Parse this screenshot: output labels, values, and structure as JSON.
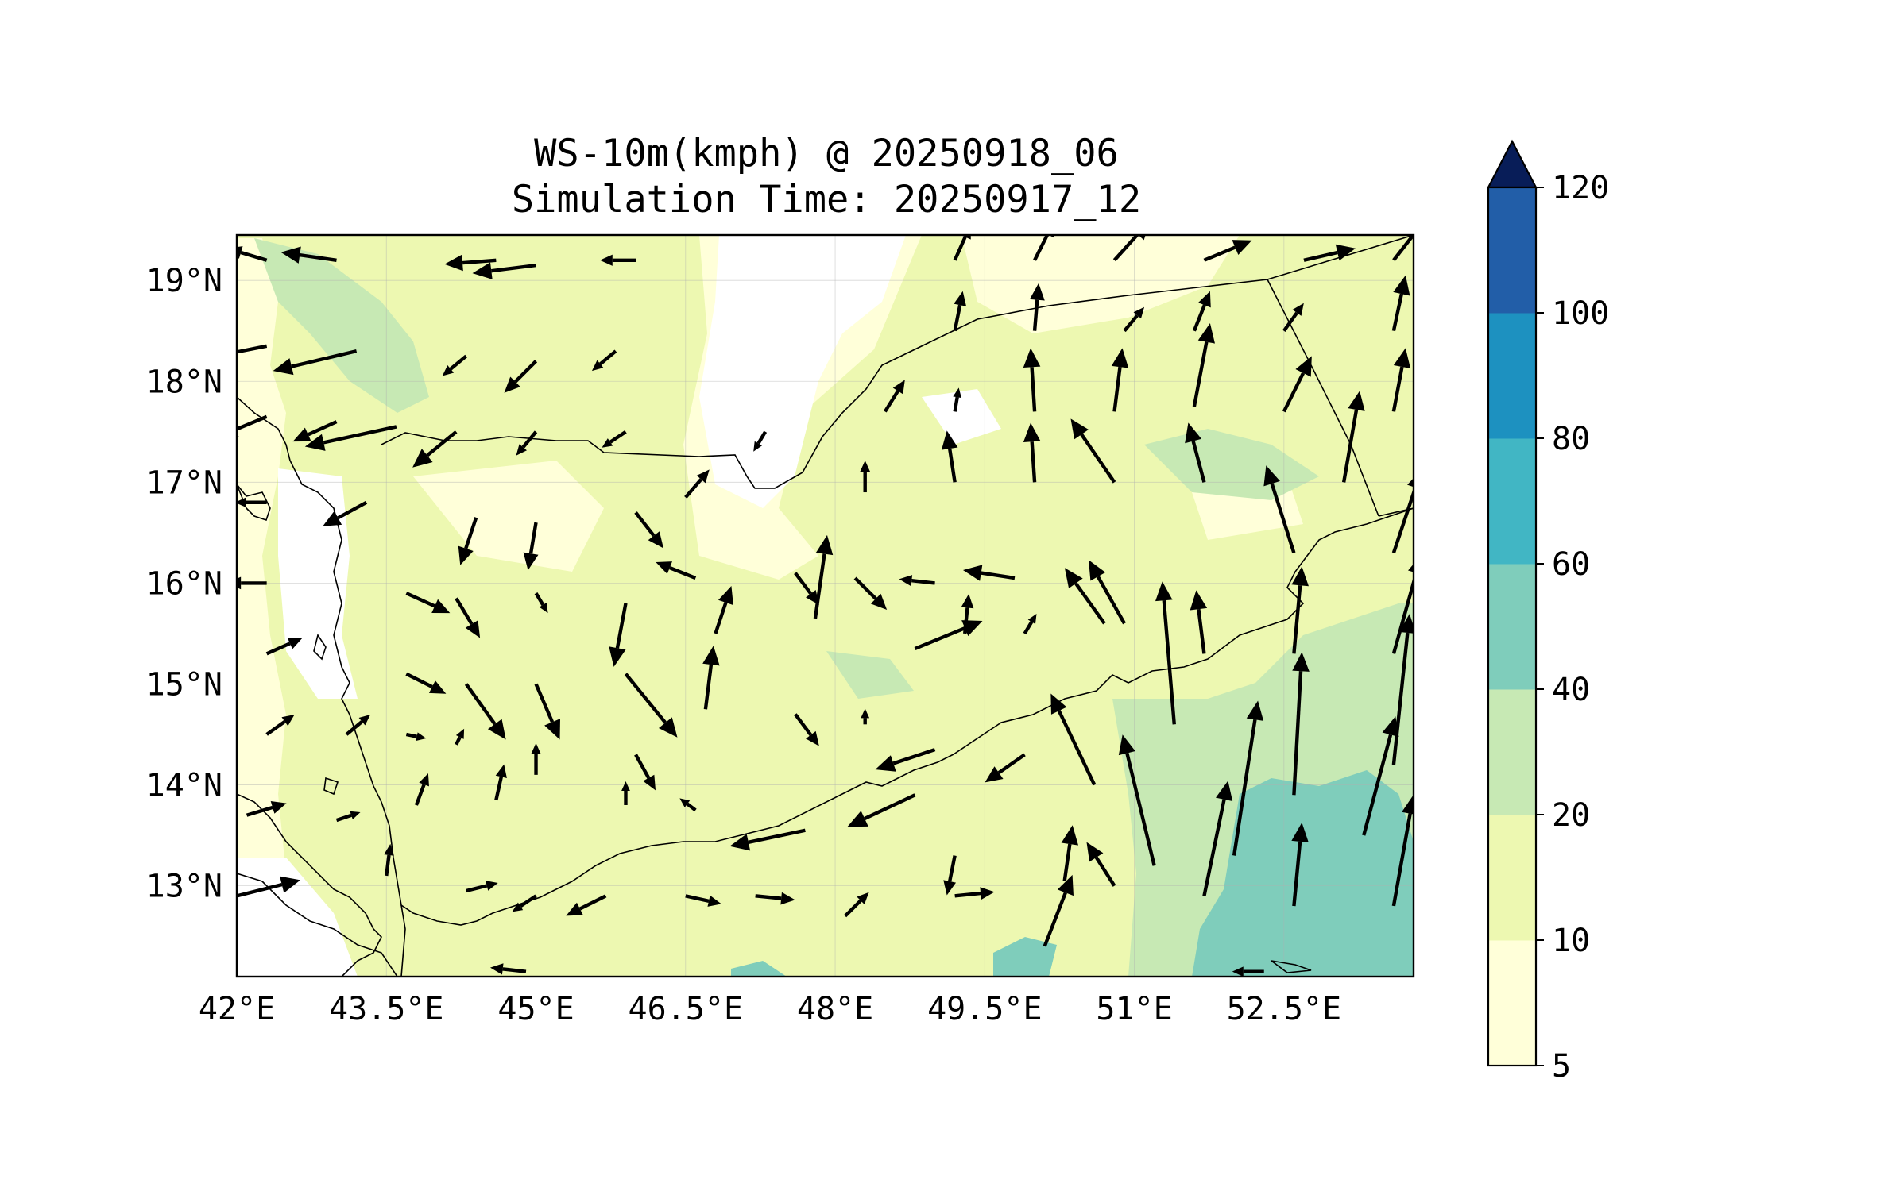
{
  "title": {
    "line1": "WS-10m(kmph) @ 20250918_06",
    "line2": "Simulation Time: 20250917_12"
  },
  "map": {
    "lon_range": [
      42.0,
      53.8
    ],
    "lat_range": [
      12.1,
      19.45
    ],
    "x_ticks": [
      {
        "value": 42.0,
        "label": "42°E"
      },
      {
        "value": 43.5,
        "label": "43.5°E"
      },
      {
        "value": 45.0,
        "label": "45°E"
      },
      {
        "value": 46.5,
        "label": "46.5°E"
      },
      {
        "value": 48.0,
        "label": "48°E"
      },
      {
        "value": 49.5,
        "label": "49.5°E"
      },
      {
        "value": 51.0,
        "label": "51°E"
      },
      {
        "value": 52.5,
        "label": "52.5°E"
      }
    ],
    "y_ticks": [
      {
        "value": 19,
        "label": "19°N"
      },
      {
        "value": 18,
        "label": "18°N"
      },
      {
        "value": 17,
        "label": "17°N"
      },
      {
        "value": 16,
        "label": "16°N"
      },
      {
        "value": 15,
        "label": "15°N"
      },
      {
        "value": 14,
        "label": "14°N"
      },
      {
        "value": 13,
        "label": "13°N"
      }
    ]
  },
  "colorbar": {
    "levels": [
      5,
      10,
      20,
      40,
      60,
      80,
      100,
      120
    ],
    "labels": [
      "5",
      "10",
      "20",
      "40",
      "60",
      "80",
      "100",
      "120"
    ],
    "colors": [
      "#ffffd9",
      "#edf8b1",
      "#c7e9b4",
      "#7fcdbb",
      "#41b6c4",
      "#1d91c0",
      "#225ea8",
      "#0c2c84"
    ],
    "extend_color": "#081d58",
    "extend": "max"
  },
  "chart_data": {
    "type": "quiver",
    "title": "WS-10m(kmph) @ 20250918_06",
    "subtitle": "Simulation Time: 20250917_12",
    "units": "kmph",
    "xlim": [
      42.0,
      53.8
    ],
    "ylim": [
      12.1,
      19.45
    ],
    "vectors": [
      {
        "lon": 42.3,
        "lat": 19.2,
        "u": -1.0,
        "v": 0.3
      },
      {
        "lon": 43.0,
        "lat": 19.2,
        "u": -1.4,
        "v": 0.2
      },
      {
        "lon": 44.6,
        "lat": 19.2,
        "u": -1.3,
        "v": -0.1
      },
      {
        "lon": 45.0,
        "lat": 19.15,
        "u": -1.6,
        "v": -0.2
      },
      {
        "lon": 46.0,
        "lat": 19.2,
        "u": -0.9,
        "v": 0.0
      },
      {
        "lon": 49.2,
        "lat": 19.2,
        "u": 0.4,
        "v": 0.9
      },
      {
        "lon": 50.0,
        "lat": 19.2,
        "u": 0.5,
        "v": 1.0
      },
      {
        "lon": 50.8,
        "lat": 19.2,
        "u": 0.9,
        "v": 1.0
      },
      {
        "lon": 51.7,
        "lat": 19.2,
        "u": 1.2,
        "v": 0.5
      },
      {
        "lon": 52.7,
        "lat": 19.2,
        "u": 1.3,
        "v": 0.3
      },
      {
        "lon": 53.6,
        "lat": 19.2,
        "u": 0.7,
        "v": 0.9
      },
      {
        "lon": 42.3,
        "lat": 18.35,
        "u": -2.0,
        "v": -0.4
      },
      {
        "lon": 43.2,
        "lat": 18.3,
        "u": -2.1,
        "v": -0.5
      },
      {
        "lon": 44.3,
        "lat": 18.25,
        "u": -0.6,
        "v": -0.5
      },
      {
        "lon": 45.0,
        "lat": 18.2,
        "u": -0.8,
        "v": -0.8
      },
      {
        "lon": 45.8,
        "lat": 18.3,
        "u": -0.6,
        "v": -0.5
      },
      {
        "lon": 49.2,
        "lat": 18.5,
        "u": 0.2,
        "v": 1.0
      },
      {
        "lon": 50.0,
        "lat": 18.5,
        "u": 0.1,
        "v": 1.2
      },
      {
        "lon": 50.9,
        "lat": 18.5,
        "u": 0.5,
        "v": 0.6
      },
      {
        "lon": 51.6,
        "lat": 18.5,
        "u": 0.4,
        "v": 1.0
      },
      {
        "lon": 52.5,
        "lat": 18.5,
        "u": 0.5,
        "v": 0.7
      },
      {
        "lon": 53.6,
        "lat": 18.5,
        "u": 0.3,
        "v": 1.4
      },
      {
        "lon": 42.3,
        "lat": 17.65,
        "u": -1.2,
        "v": -0.5
      },
      {
        "lon": 43.0,
        "lat": 17.6,
        "u": -1.1,
        "v": -0.5
      },
      {
        "lon": 43.6,
        "lat": 17.55,
        "u": -2.3,
        "v": -0.5
      },
      {
        "lon": 44.2,
        "lat": 17.5,
        "u": -1.1,
        "v": -0.9
      },
      {
        "lon": 45.0,
        "lat": 17.5,
        "u": -0.5,
        "v": -0.6
      },
      {
        "lon": 45.9,
        "lat": 17.5,
        "u": -0.6,
        "v": -0.4
      },
      {
        "lon": 47.3,
        "lat": 17.5,
        "u": -0.3,
        "v": -0.5
      },
      {
        "lon": 48.5,
        "lat": 17.7,
        "u": 0.5,
        "v": 0.8
      },
      {
        "lon": 49.2,
        "lat": 17.7,
        "u": 0.1,
        "v": 0.6
      },
      {
        "lon": 50.0,
        "lat": 17.7,
        "u": -0.1,
        "v": 1.6
      },
      {
        "lon": 50.8,
        "lat": 17.7,
        "u": 0.2,
        "v": 1.6
      },
      {
        "lon": 51.6,
        "lat": 17.75,
        "u": 0.4,
        "v": 2.1
      },
      {
        "lon": 52.5,
        "lat": 17.7,
        "u": 0.7,
        "v": 1.4
      },
      {
        "lon": 53.6,
        "lat": 17.7,
        "u": 0.3,
        "v": 1.6
      },
      {
        "lon": 42.3,
        "lat": 16.8,
        "u": -0.8,
        "v": 0.0
      },
      {
        "lon": 43.3,
        "lat": 16.8,
        "u": -1.1,
        "v": -0.6
      },
      {
        "lon": 44.4,
        "lat": 16.65,
        "u": -0.4,
        "v": -1.2
      },
      {
        "lon": 45.0,
        "lat": 16.6,
        "u": -0.2,
        "v": -1.2
      },
      {
        "lon": 46.0,
        "lat": 16.7,
        "u": 0.7,
        "v": -0.9
      },
      {
        "lon": 46.5,
        "lat": 16.85,
        "u": 0.6,
        "v": 0.7
      },
      {
        "lon": 48.3,
        "lat": 16.9,
        "u": 0.0,
        "v": 0.8
      },
      {
        "lon": 49.2,
        "lat": 17.0,
        "u": -0.2,
        "v": 1.3
      },
      {
        "lon": 50.0,
        "lat": 17.0,
        "u": -0.1,
        "v": 1.5
      },
      {
        "lon": 50.8,
        "lat": 17.0,
        "u": -1.1,
        "v": 1.6
      },
      {
        "lon": 51.7,
        "lat": 17.0,
        "u": -0.4,
        "v": 1.5
      },
      {
        "lon": 52.6,
        "lat": 16.3,
        "u": -0.7,
        "v": 2.2
      },
      {
        "lon": 53.1,
        "lat": 17.0,
        "u": 0.4,
        "v": 2.3
      },
      {
        "lon": 53.6,
        "lat": 16.3,
        "u": 0.7,
        "v": 2.1
      },
      {
        "lon": 42.3,
        "lat": 16.0,
        "u": -1.0,
        "v": 0.0
      },
      {
        "lon": 43.7,
        "lat": 15.9,
        "u": 1.1,
        "v": -0.5
      },
      {
        "lon": 44.2,
        "lat": 15.85,
        "u": 0.6,
        "v": -1.0
      },
      {
        "lon": 45.0,
        "lat": 15.9,
        "u": 0.3,
        "v": -0.5
      },
      {
        "lon": 45.9,
        "lat": 15.8,
        "u": -0.3,
        "v": -1.6
      },
      {
        "lon": 46.6,
        "lat": 16.05,
        "u": -1.0,
        "v": 0.4
      },
      {
        "lon": 47.6,
        "lat": 16.1,
        "u": 0.6,
        "v": -0.8
      },
      {
        "lon": 48.2,
        "lat": 16.05,
        "u": 0.8,
        "v": -0.8
      },
      {
        "lon": 49.0,
        "lat": 16.0,
        "u": -0.9,
        "v": 0.1
      },
      {
        "lon": 49.8,
        "lat": 16.05,
        "u": -1.3,
        "v": 0.2
      },
      {
        "lon": 50.9,
        "lat": 15.6,
        "u": -0.9,
        "v": 1.6
      },
      {
        "lon": 51.7,
        "lat": 15.3,
        "u": -0.2,
        "v": 1.6
      },
      {
        "lon": 52.6,
        "lat": 15.3,
        "u": 0.2,
        "v": 2.2
      },
      {
        "lon": 53.6,
        "lat": 15.3,
        "u": 0.7,
        "v": 2.5
      },
      {
        "lon": 42.3,
        "lat": 15.3,
        "u": 0.9,
        "v": 0.4
      },
      {
        "lon": 43.7,
        "lat": 15.1,
        "u": 1.0,
        "v": -0.5
      },
      {
        "lon": 44.3,
        "lat": 15.0,
        "u": 1.0,
        "v": -1.4
      },
      {
        "lon": 45.0,
        "lat": 15.0,
        "u": 0.6,
        "v": -1.4
      },
      {
        "lon": 45.9,
        "lat": 15.1,
        "u": 1.3,
        "v": -1.6
      },
      {
        "lon": 46.8,
        "lat": 15.5,
        "u": 0.4,
        "v": 1.2
      },
      {
        "lon": 47.8,
        "lat": 15.65,
        "u": 0.3,
        "v": 2.1
      },
      {
        "lon": 48.8,
        "lat": 15.35,
        "u": 1.7,
        "v": 0.7
      },
      {
        "lon": 49.3,
        "lat": 15.5,
        "u": 0.1,
        "v": 1.0
      },
      {
        "lon": 49.9,
        "lat": 15.5,
        "u": 0.3,
        "v": 0.5
      },
      {
        "lon": 50.7,
        "lat": 15.6,
        "u": -1.0,
        "v": 1.4
      },
      {
        "lon": 51.4,
        "lat": 14.6,
        "u": -0.3,
        "v": 3.6
      },
      {
        "lon": 52.6,
        "lat": 13.9,
        "u": 0.2,
        "v": 3.6
      },
      {
        "lon": 53.6,
        "lat": 14.2,
        "u": 0.4,
        "v": 3.8
      },
      {
        "lon": 42.3,
        "lat": 14.5,
        "u": 0.7,
        "v": 0.5
      },
      {
        "lon": 43.1,
        "lat": 14.5,
        "u": 0.6,
        "v": 0.5
      },
      {
        "lon": 43.7,
        "lat": 14.5,
        "u": 0.5,
        "v": -0.1
      },
      {
        "lon": 44.2,
        "lat": 14.4,
        "u": 0.2,
        "v": 0.4
      },
      {
        "lon": 45.0,
        "lat": 14.1,
        "u": 0.0,
        "v": 0.8
      },
      {
        "lon": 46.0,
        "lat": 14.3,
        "u": 0.5,
        "v": -0.9
      },
      {
        "lon": 46.7,
        "lat": 14.75,
        "u": 0.2,
        "v": 1.6
      },
      {
        "lon": 47.6,
        "lat": 14.7,
        "u": 0.6,
        "v": -0.8
      },
      {
        "lon": 48.3,
        "lat": 14.6,
        "u": 0.0,
        "v": 0.4
      },
      {
        "lon": 49.0,
        "lat": 14.35,
        "u": -1.5,
        "v": -0.5
      },
      {
        "lon": 49.9,
        "lat": 14.3,
        "u": -1.0,
        "v": -0.7
      },
      {
        "lon": 50.6,
        "lat": 14.0,
        "u": -1.1,
        "v": 2.3
      },
      {
        "lon": 51.2,
        "lat": 13.2,
        "u": -0.8,
        "v": 3.3
      },
      {
        "lon": 52.0,
        "lat": 13.3,
        "u": 0.6,
        "v": 3.9
      },
      {
        "lon": 53.3,
        "lat": 13.5,
        "u": 0.8,
        "v": 3.0
      },
      {
        "lon": 42.1,
        "lat": 13.7,
        "u": 1.0,
        "v": 0.3
      },
      {
        "lon": 43.0,
        "lat": 13.65,
        "u": 0.6,
        "v": 0.2
      },
      {
        "lon": 43.8,
        "lat": 13.8,
        "u": 0.3,
        "v": 0.8
      },
      {
        "lon": 44.6,
        "lat": 13.85,
        "u": 0.2,
        "v": 0.9
      },
      {
        "lon": 45.9,
        "lat": 13.8,
        "u": 0.0,
        "v": 0.6
      },
      {
        "lon": 46.6,
        "lat": 13.75,
        "u": -0.4,
        "v": 0.3
      },
      {
        "lon": 47.7,
        "lat": 13.55,
        "u": -1.9,
        "v": -0.4
      },
      {
        "lon": 48.8,
        "lat": 13.9,
        "u": -1.7,
        "v": -0.8
      },
      {
        "lon": 49.2,
        "lat": 13.3,
        "u": -0.2,
        "v": -1.0
      },
      {
        "lon": 50.3,
        "lat": 13.05,
        "u": 0.2,
        "v": 1.4
      },
      {
        "lon": 50.8,
        "lat": 13.0,
        "u": -0.7,
        "v": 1.1
      },
      {
        "lon": 51.7,
        "lat": 12.9,
        "u": 0.6,
        "v": 2.9
      },
      {
        "lon": 52.6,
        "lat": 12.8,
        "u": 0.2,
        "v": 2.1
      },
      {
        "lon": 53.6,
        "lat": 12.8,
        "u": 0.5,
        "v": 2.8
      },
      {
        "lon": 42.0,
        "lat": 12.9,
        "u": 1.6,
        "v": 0.4
      },
      {
        "lon": 43.5,
        "lat": 13.1,
        "u": 0.1,
        "v": 0.8
      },
      {
        "lon": 44.3,
        "lat": 12.95,
        "u": 0.8,
        "v": 0.2
      },
      {
        "lon": 45.0,
        "lat": 12.9,
        "u": -0.6,
        "v": -0.4
      },
      {
        "lon": 45.7,
        "lat": 12.9,
        "u": -1.0,
        "v": -0.5
      },
      {
        "lon": 46.5,
        "lat": 12.9,
        "u": 0.9,
        "v": -0.2
      },
      {
        "lon": 47.2,
        "lat": 12.9,
        "u": 1.0,
        "v": -0.1
      },
      {
        "lon": 48.1,
        "lat": 12.7,
        "u": 0.6,
        "v": 0.6
      },
      {
        "lon": 49.2,
        "lat": 12.9,
        "u": 1.0,
        "v": 0.1
      },
      {
        "lon": 50.1,
        "lat": 12.4,
        "u": 0.7,
        "v": 1.8
      },
      {
        "lon": 52.3,
        "lat": 12.15,
        "u": -0.8,
        "v": 0.0
      },
      {
        "lon": 44.9,
        "lat": 12.15,
        "u": -0.9,
        "v": 0.1
      }
    ]
  }
}
